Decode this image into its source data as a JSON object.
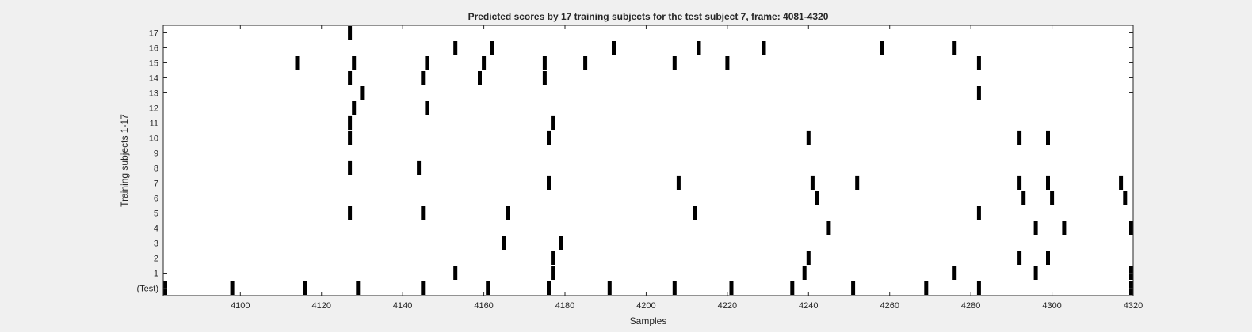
{
  "chart_data": {
    "type": "scatter",
    "title": "Predicted scores by 17 training subjects for the test subject 7, frame: 4081-4320",
    "xlabel": "Samples",
    "ylabel": "Training subjects 1-17",
    "xlim": [
      4081,
      4320
    ],
    "ylim": [
      -0.5,
      17.5
    ],
    "x_ticks": [
      "4100",
      "4120",
      "4140",
      "4160",
      "4180",
      "4200",
      "4220",
      "4240",
      "4260",
      "4280",
      "4300",
      "4320"
    ],
    "y_ticks": [
      "(Test)",
      "1",
      "2",
      "3",
      "4",
      "5",
      "6",
      "7",
      "8",
      "9",
      "10",
      "11",
      "12",
      "13",
      "14",
      "15",
      "16",
      "17"
    ],
    "grid": false,
    "series": [
      {
        "row": 0,
        "x": [
          4081,
          4098,
          4116,
          4129,
          4145,
          4161,
          4176,
          4191,
          4207,
          4221,
          4236,
          4251,
          4269,
          4282,
          4320
        ]
      },
      {
        "row": 1,
        "x": [
          4153,
          4177,
          4239,
          4276,
          4296,
          4320
        ]
      },
      {
        "row": 2,
        "x": [
          4177,
          4240,
          4292,
          4299
        ]
      },
      {
        "row": 3,
        "x": [
          4165,
          4179
        ]
      },
      {
        "row": 4,
        "x": [
          4245,
          4296,
          4303,
          4320
        ]
      },
      {
        "row": 5,
        "x": [
          4127,
          4145,
          4166,
          4212,
          4282
        ]
      },
      {
        "row": 6,
        "x": [
          4242,
          4293,
          4300,
          4318
        ]
      },
      {
        "row": 7,
        "x": [
          4176,
          4208,
          4241,
          4252,
          4292,
          4299,
          4317
        ]
      },
      {
        "row": 8,
        "x": [
          4127,
          4144
        ]
      },
      {
        "row": 9,
        "x": []
      },
      {
        "row": 10,
        "x": [
          4127,
          4176,
          4240,
          4292,
          4299
        ]
      },
      {
        "row": 11,
        "x": [
          4127,
          4177
        ]
      },
      {
        "row": 12,
        "x": [
          4128,
          4146
        ]
      },
      {
        "row": 13,
        "x": [
          4130,
          4282
        ]
      },
      {
        "row": 14,
        "x": [
          4127,
          4145,
          4159,
          4175
        ]
      },
      {
        "row": 15,
        "x": [
          4114,
          4128,
          4146,
          4160,
          4175,
          4185,
          4207,
          4220,
          4282
        ]
      },
      {
        "row": 16,
        "x": [
          4153,
          4162,
          4192,
          4213,
          4229,
          4258,
          4276
        ]
      },
      {
        "row": 17,
        "x": [
          4127
        ]
      }
    ]
  }
}
